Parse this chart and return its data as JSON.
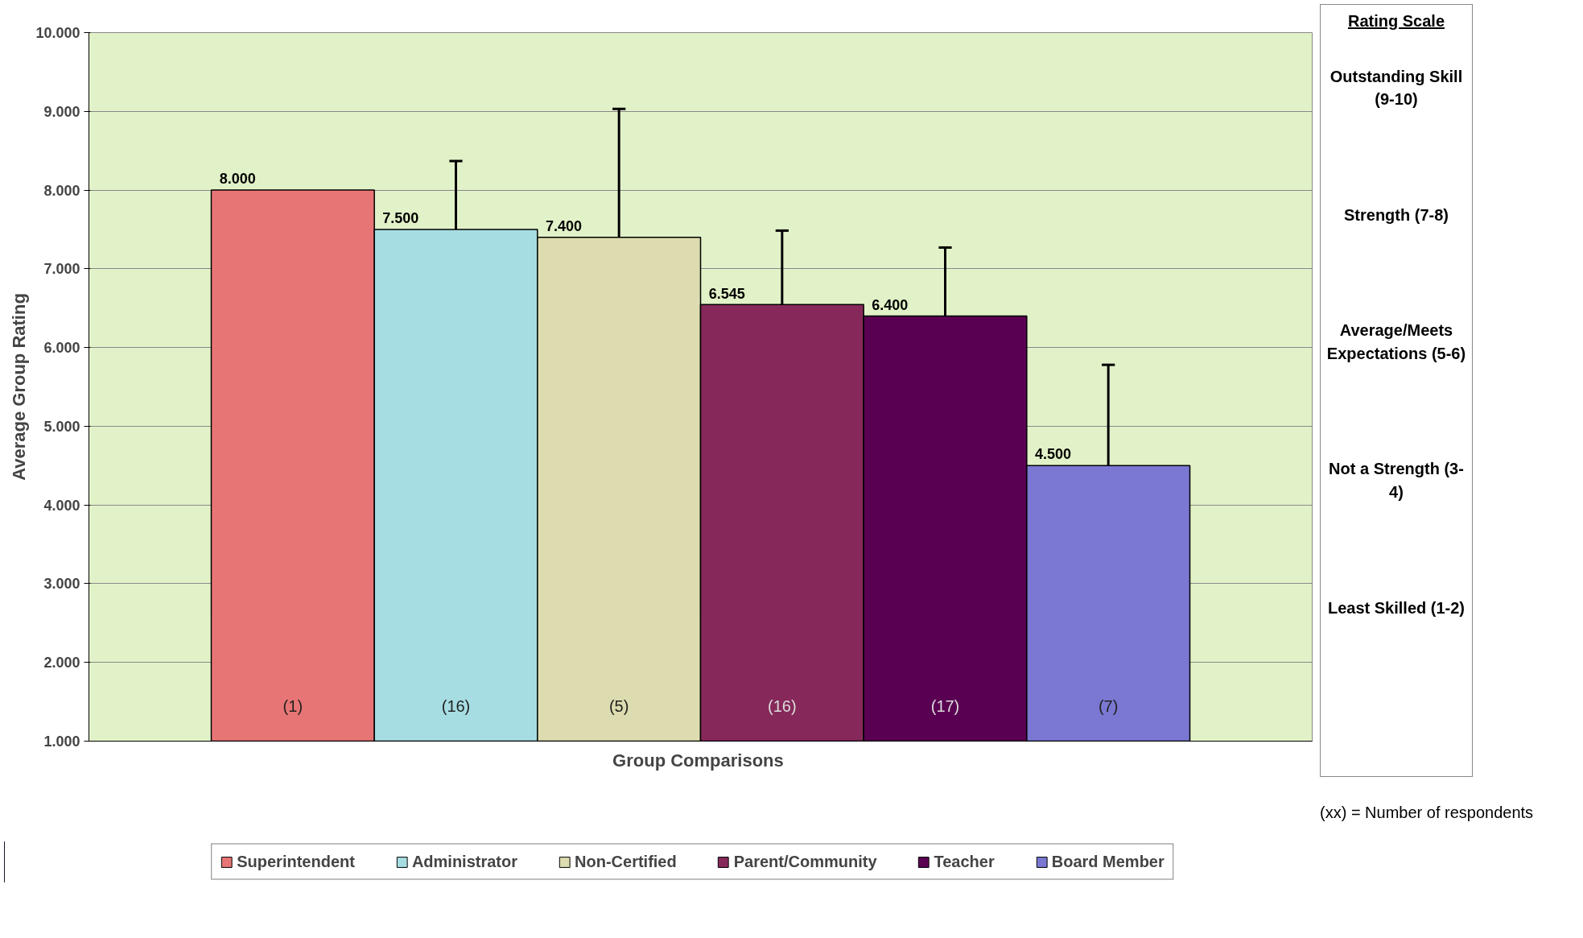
{
  "chart_data": {
    "type": "bar",
    "xlabel": "Group  Comparisons",
    "ylabel": "Average Group Rating",
    "categories": [
      null
    ],
    "series": [
      {
        "name": "Superintendent",
        "color": "#e87575",
        "values": [
          8.0
        ],
        "errors": [
          null
        ],
        "value_labels": [
          "8.000"
        ]
      },
      {
        "name": "Administrator",
        "color": "#a6dde2",
        "values": [
          7.5
        ],
        "errors": [
          0.87
        ],
        "value_labels": [
          "7.500"
        ]
      },
      {
        "name": "Non-Certified",
        "color": "#dcdcb0",
        "values": [
          7.4
        ],
        "errors": [
          1.63
        ],
        "value_labels": [
          "7.400"
        ]
      },
      {
        "name": "Parent/Community",
        "color": "#86295a",
        "values": [
          6.545
        ],
        "errors": [
          0.94
        ],
        "value_labels": [
          "6.545"
        ]
      },
      {
        "name": "Teacher",
        "color": "#5a0052",
        "values": [
          6.4
        ],
        "errors": [
          0.87
        ],
        "value_labels": [
          "6.400"
        ]
      },
      {
        "name": "Board Member",
        "color": "#7a78d2",
        "values": [
          4.5
        ],
        "errors": [
          1.28
        ],
        "value_labels": [
          "4.500"
        ]
      }
    ],
    "ylim": [
      1,
      10
    ],
    "yticks": [
      {
        "value": 1,
        "label": "1.000"
      },
      {
        "value": 2,
        "label": "2.000"
      },
      {
        "value": 3,
        "label": "3.000"
      },
      {
        "value": 4,
        "label": "4.000"
      },
      {
        "value": 5,
        "label": "5.000"
      },
      {
        "value": 6,
        "label": "6.000"
      },
      {
        "value": 7,
        "label": "7.000"
      },
      {
        "value": 8,
        "label": "8.000"
      },
      {
        "value": 9,
        "label": "9.000"
      },
      {
        "value": 10,
        "label": "10.000"
      }
    ],
    "grid": "y",
    "legend": "bottom",
    "annotations": [
      "(1)",
      "(16)",
      "(5)",
      "(16)",
      "(17)",
      "(7)",
      "Rating Scale",
      "Outstanding Skill (9-10)",
      "Strength (7-8)",
      "Average/Meets Expectations (5-6)",
      "Not a Strength (3-4)",
      "Least Skilled (1-2)",
      "(xx) = Number of respondents"
    ]
  }
}
